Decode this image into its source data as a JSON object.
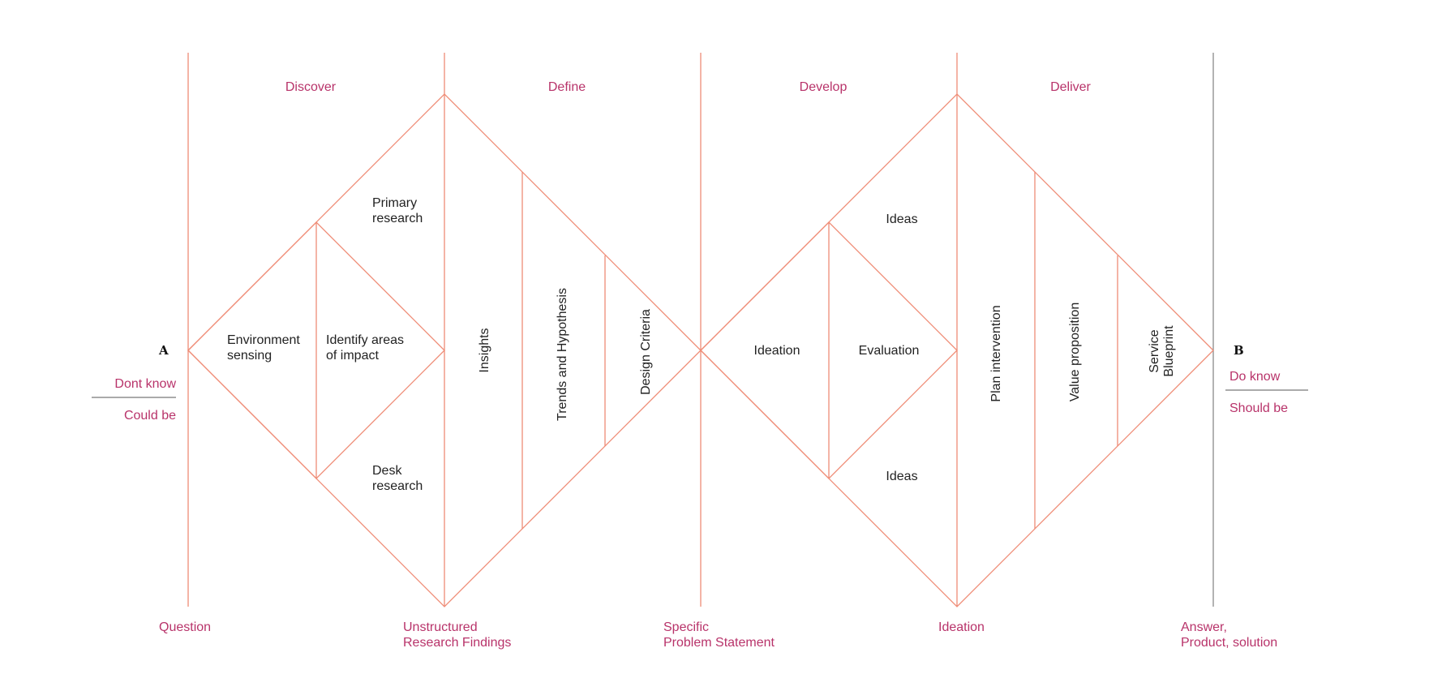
{
  "colors": {
    "line": "#ef8c76",
    "final_line": "#8a8a8a",
    "accent_text": "#b8336a",
    "body_text": "#222222",
    "divider": "#777777"
  },
  "phases": [
    "Discover",
    "Define",
    "Develop",
    "Deliver"
  ],
  "stages": [
    "Question",
    "Unstructured\nResearch Findings",
    "Specific\nProblem Statement",
    "Ideation",
    "Answer,\nProduct, solution"
  ],
  "start": {
    "marker": "A",
    "top": "Dont know",
    "bottom": "Could be"
  },
  "end": {
    "marker": "B",
    "top": "Do know",
    "bottom": "Should be"
  },
  "diamond_1": {
    "primary": "Primary\nresearch",
    "environment": "Environment\nsensing",
    "identify": "Identify areas\nof impact",
    "desk": "Desk\nresearch",
    "insights": "Insights",
    "trends": "Trends and Hypothesis",
    "criteria": "Design Criteria"
  },
  "diamond_2": {
    "ideas_top": "Ideas",
    "ideation": "Ideation",
    "evaluation": "Evaluation",
    "ideas_bottom": "Ideas",
    "plan": "Plan intervention",
    "value": "Value proposition",
    "blueprint": "Service\nBlueprint"
  }
}
